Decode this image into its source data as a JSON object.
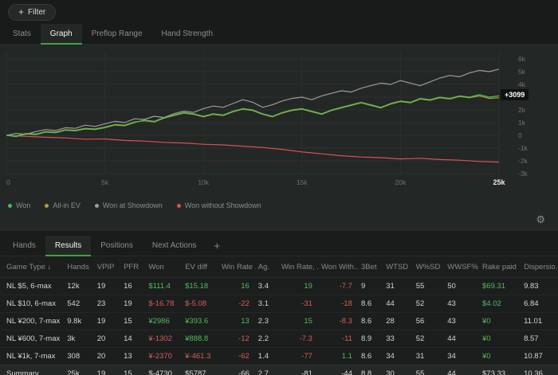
{
  "colors": {
    "accent_green": "#43a047",
    "positive_text": "#56b95d",
    "negative_text": "#d85c5c"
  },
  "icons": {
    "plus": "+",
    "gear": "⚙",
    "add_tab": "+"
  },
  "topbar": {
    "filter_label": "Filter"
  },
  "main_tabs": [
    {
      "label": "Stats"
    },
    {
      "label": "Graph"
    },
    {
      "label": "Preflop Range"
    },
    {
      "label": "Hand Strength"
    }
  ],
  "chart_data": {
    "type": "line",
    "title": "",
    "x_max": 25000,
    "ylim": [
      -3000,
      6500
    ],
    "x_ticks": [
      {
        "v": 0,
        "label": "0"
      },
      {
        "v": 5000,
        "label": "5k"
      },
      {
        "v": 10000,
        "label": "10k"
      },
      {
        "v": 15000,
        "label": "15k"
      },
      {
        "v": 20000,
        "label": "20k"
      },
      {
        "v": 25000,
        "label": "25k"
      }
    ],
    "y_ticks": [
      {
        "v": 6000,
        "label": "6k"
      },
      {
        "v": 5000,
        "label": "5k"
      },
      {
        "v": 4000,
        "label": "4k"
      },
      {
        "v": 3000,
        "label": "3k"
      },
      {
        "v": 2000,
        "label": "2k"
      },
      {
        "v": 1000,
        "label": "1k"
      },
      {
        "v": 0,
        "label": "0"
      },
      {
        "v": -1000,
        "label": "-1k"
      },
      {
        "v": -2000,
        "label": "-2k"
      },
      {
        "v": -3000,
        "label": "-3k"
      }
    ],
    "current_value": 3099,
    "current_value_label": "+3099",
    "series": [
      {
        "name": "Won at Showdown",
        "color": "#9c9c9c",
        "step": 500,
        "values": [
          0,
          150,
          80,
          300,
          450,
          380,
          600,
          550,
          800,
          700,
          900,
          1100,
          1000,
          1300,
          1250,
          1500,
          1400,
          1700,
          1900,
          1800,
          2100,
          2300,
          2200,
          2500,
          2800,
          2600,
          2200,
          2400,
          2700,
          2900,
          3000,
          2800,
          3100,
          3300,
          3500,
          3400,
          3700,
          3900,
          4100,
          4000,
          4300,
          4100,
          3900,
          4200,
          4500,
          4700,
          4600,
          4900,
          5100,
          5000,
          5200
        ]
      },
      {
        "name": "Won without Showdown",
        "color": "#d95252",
        "step": 1000,
        "values": [
          0,
          -80,
          -150,
          -200,
          -300,
          -280,
          -400,
          -450,
          -550,
          -600,
          -700,
          -750,
          -850,
          -950,
          -1100,
          -1300,
          -1450,
          -1600,
          -1700,
          -1750,
          -1850,
          -1800,
          -1900,
          -1950,
          -2050,
          -2100
        ]
      },
      {
        "name": "All-in EV",
        "color": "#a9a237",
        "step": 500,
        "values": [
          0,
          -50,
          150,
          100,
          300,
          250,
          450,
          400,
          550,
          500,
          650,
          850,
          800,
          1050,
          1150,
          1050,
          1350,
          1550,
          1750,
          1650,
          1450,
          1650,
          1550,
          1850,
          2050,
          1950,
          1650,
          1450,
          1750,
          1950,
          2050,
          1850,
          1650,
          1950,
          2150,
          2350,
          2550,
          2350,
          2150,
          2450,
          2650,
          2550,
          2850,
          2750,
          2950,
          2850,
          3050,
          2950,
          3100,
          2900,
          2950
        ]
      },
      {
        "name": "Won",
        "color": "#4cbb58",
        "step": 500,
        "values": [
          0,
          -100,
          100,
          50,
          250,
          200,
          400,
          350,
          500,
          450,
          600,
          800,
          750,
          1000,
          1200,
          1100,
          1400,
          1600,
          1800,
          1700,
          1500,
          1700,
          1600,
          1900,
          2100,
          2000,
          1700,
          1500,
          1800,
          2000,
          2100,
          1900,
          1700,
          2000,
          2200,
          2400,
          2600,
          2400,
          2200,
          2500,
          2700,
          2600,
          2900,
          2800,
          3000,
          2900,
          3100,
          3000,
          3200,
          3000,
          3099
        ]
      }
    ],
    "legend": [
      {
        "label": "Won",
        "color": "#4cbb58"
      },
      {
        "label": "All-in EV",
        "color": "#a9a237"
      },
      {
        "label": "Won at Showdown",
        "color": "#9c9c9c"
      },
      {
        "label": "Won without Showdown",
        "color": "#d95252"
      }
    ]
  },
  "table_tabs": [
    {
      "label": "Hands"
    },
    {
      "label": "Results"
    },
    {
      "label": "Positions"
    },
    {
      "label": "Next Actions"
    }
  ],
  "table": {
    "sort_indicator": "↓",
    "columns": [
      "Game Type",
      "Hands",
      "VPIP",
      "PFR",
      "Won",
      "EV diff",
      "Win Rate ...",
      "Ag.",
      "Win Rate, ...",
      "Won With...",
      "3Bet",
      "WTSD",
      "W%SD",
      "WWSF%",
      "Rake paid",
      "Dispersio..."
    ],
    "rows": [
      {
        "cells": [
          {
            "t": "NL $5, 6-max"
          },
          {
            "t": "12k"
          },
          {
            "t": "19"
          },
          {
            "t": "16"
          },
          {
            "t": "$111.4",
            "c": "pos"
          },
          {
            "t": "$15.18",
            "c": "pos"
          },
          {
            "t": "16",
            "c": "pos"
          },
          {
            "t": "3.4"
          },
          {
            "t": "19",
            "c": "pos"
          },
          {
            "t": "-7.7",
            "c": "neg"
          },
          {
            "t": "9"
          },
          {
            "t": "31"
          },
          {
            "t": "55"
          },
          {
            "t": "50"
          },
          {
            "t": "$69.31",
            "c": "pos"
          },
          {
            "t": "9.83"
          }
        ]
      },
      {
        "cells": [
          {
            "t": "NL $10, 6-max"
          },
          {
            "t": "542"
          },
          {
            "t": "23"
          },
          {
            "t": "19"
          },
          {
            "t": "$-16.78",
            "c": "neg"
          },
          {
            "t": "$-5.08",
            "c": "neg"
          },
          {
            "t": "-22",
            "c": "neg"
          },
          {
            "t": "3.1"
          },
          {
            "t": "-31",
            "c": "neg"
          },
          {
            "t": "-18",
            "c": "neg"
          },
          {
            "t": "8.6"
          },
          {
            "t": "44"
          },
          {
            "t": "52"
          },
          {
            "t": "43"
          },
          {
            "t": "$4.02",
            "c": "pos"
          },
          {
            "t": "6.84"
          }
        ]
      },
      {
        "cells": [
          {
            "t": "NL ¥200, 7-max"
          },
          {
            "t": "9.8k"
          },
          {
            "t": "19"
          },
          {
            "t": "15"
          },
          {
            "t": "¥2986",
            "c": "pos"
          },
          {
            "t": "¥393.6",
            "c": "pos"
          },
          {
            "t": "13",
            "c": "pos"
          },
          {
            "t": "2.3"
          },
          {
            "t": "15",
            "c": "pos"
          },
          {
            "t": "-8.3",
            "c": "neg"
          },
          {
            "t": "8.6"
          },
          {
            "t": "28"
          },
          {
            "t": "56"
          },
          {
            "t": "43"
          },
          {
            "t": "¥0",
            "c": "pos"
          },
          {
            "t": "11.01"
          }
        ]
      },
      {
        "cells": [
          {
            "t": "NL ¥600, 7-max"
          },
          {
            "t": "3k"
          },
          {
            "t": "20"
          },
          {
            "t": "14"
          },
          {
            "t": "¥-1302",
            "c": "neg"
          },
          {
            "t": "¥888.8",
            "c": "pos"
          },
          {
            "t": "-12",
            "c": "neg"
          },
          {
            "t": "2.2"
          },
          {
            "t": "-7.3",
            "c": "neg"
          },
          {
            "t": "-11",
            "c": "neg"
          },
          {
            "t": "8.9"
          },
          {
            "t": "33"
          },
          {
            "t": "52"
          },
          {
            "t": "44"
          },
          {
            "t": "¥0",
            "c": "pos"
          },
          {
            "t": "8.57"
          }
        ]
      },
      {
        "cells": [
          {
            "t": "NL ¥1k, 7-max"
          },
          {
            "t": "308"
          },
          {
            "t": "20"
          },
          {
            "t": "13"
          },
          {
            "t": "¥-2370",
            "c": "neg"
          },
          {
            "t": "¥-461.3",
            "c": "neg"
          },
          {
            "t": "-62",
            "c": "neg"
          },
          {
            "t": "1.4"
          },
          {
            "t": "-77",
            "c": "neg"
          },
          {
            "t": "1.1",
            "c": "pos"
          },
          {
            "t": "8.6"
          },
          {
            "t": "34"
          },
          {
            "t": "31"
          },
          {
            "t": "34"
          },
          {
            "t": "¥0",
            "c": "pos"
          },
          {
            "t": "10.87"
          }
        ]
      },
      {
        "summary": true,
        "cells": [
          {
            "t": "Summary"
          },
          {
            "t": "25k"
          },
          {
            "t": "19"
          },
          {
            "t": "15"
          },
          {
            "t": "$-4730",
            "c": "neg"
          },
          {
            "t": "$5787",
            "c": "pos"
          },
          {
            "t": "-66",
            "c": "neg"
          },
          {
            "t": "2.7"
          },
          {
            "t": "-81",
            "c": "neg"
          },
          {
            "t": "-44",
            "c": "neg"
          },
          {
            "t": "8.8"
          },
          {
            "t": "30"
          },
          {
            "t": "55"
          },
          {
            "t": "44"
          },
          {
            "t": "$73.33",
            "c": "pos"
          },
          {
            "t": "10.36"
          }
        ]
      }
    ]
  }
}
